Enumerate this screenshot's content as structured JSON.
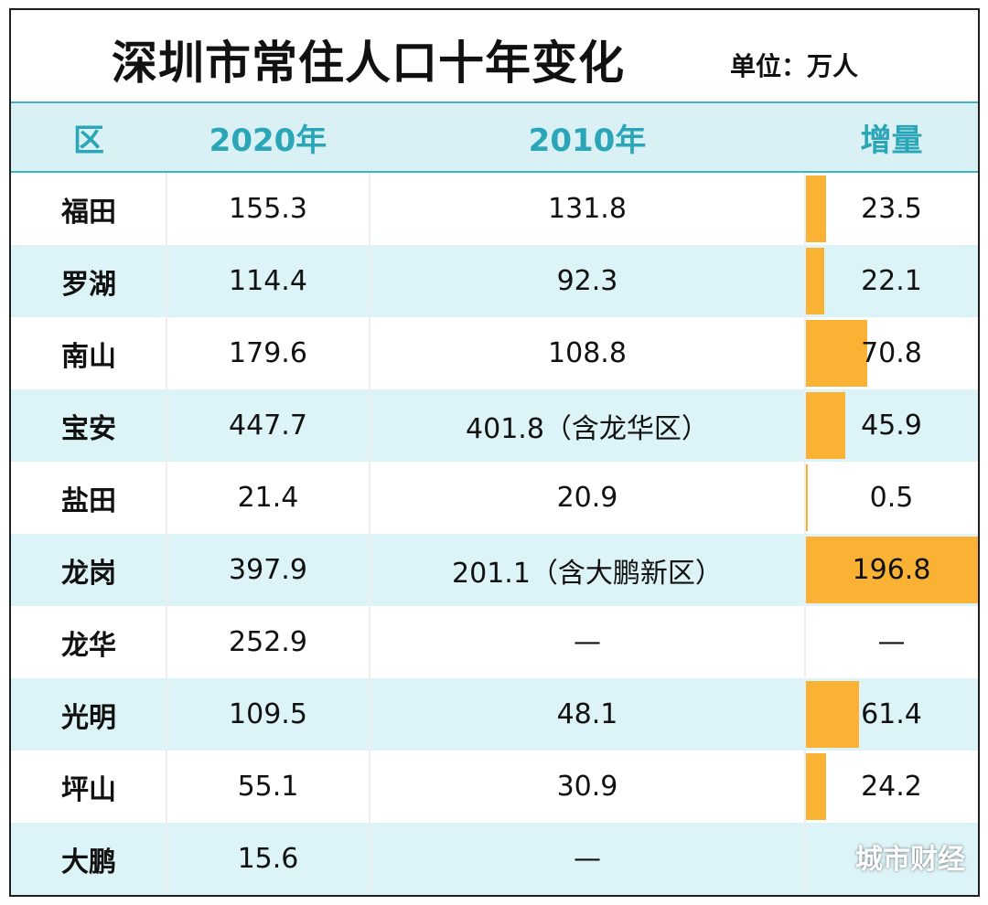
{
  "title": "深圳市常住人口十年变化",
  "unit": "单位：万人",
  "watermark": "城市财经",
  "colors": {
    "header_bg": "#d9f1f5",
    "header_text": "#2aa6b8",
    "bar": "#f9b234",
    "row_shade": "#dcf3f7"
  },
  "chart_data": {
    "type": "table",
    "columns": [
      "区",
      "2020年",
      "2010年",
      "增量"
    ],
    "rows": [
      {
        "district": "福田",
        "y2020": "155.3",
        "y2010": "131.8",
        "increase": "23.5",
        "increase_value": 23.5
      },
      {
        "district": "罗湖",
        "y2020": "114.4",
        "y2010": "92.3",
        "increase": "22.1",
        "increase_value": 22.1
      },
      {
        "district": "南山",
        "y2020": "179.6",
        "y2010": "108.8",
        "increase": "70.8",
        "increase_value": 70.8
      },
      {
        "district": "宝安",
        "y2020": "447.7",
        "y2010": "401.8（含龙华区）",
        "increase": "45.9",
        "increase_value": 45.9
      },
      {
        "district": "盐田",
        "y2020": "21.4",
        "y2010": "20.9",
        "increase": "0.5",
        "increase_value": 0.5
      },
      {
        "district": "龙岗",
        "y2020": "397.9",
        "y2010": "201.1（含大鹏新区）",
        "increase": "196.8",
        "increase_value": 196.8
      },
      {
        "district": "龙华",
        "y2020": "252.9",
        "y2010": "—",
        "increase": "—",
        "increase_value": null
      },
      {
        "district": "光明",
        "y2020": "109.5",
        "y2010": "48.1",
        "increase": "61.4",
        "increase_value": 61.4
      },
      {
        "district": "坪山",
        "y2020": "55.1",
        "y2010": "30.9",
        "increase": "24.2",
        "increase_value": 24.2
      },
      {
        "district": "大鹏",
        "y2020": "15.6",
        "y2010": "—",
        "increase": "",
        "increase_value": null
      }
    ],
    "bar_max": 196.8
  }
}
